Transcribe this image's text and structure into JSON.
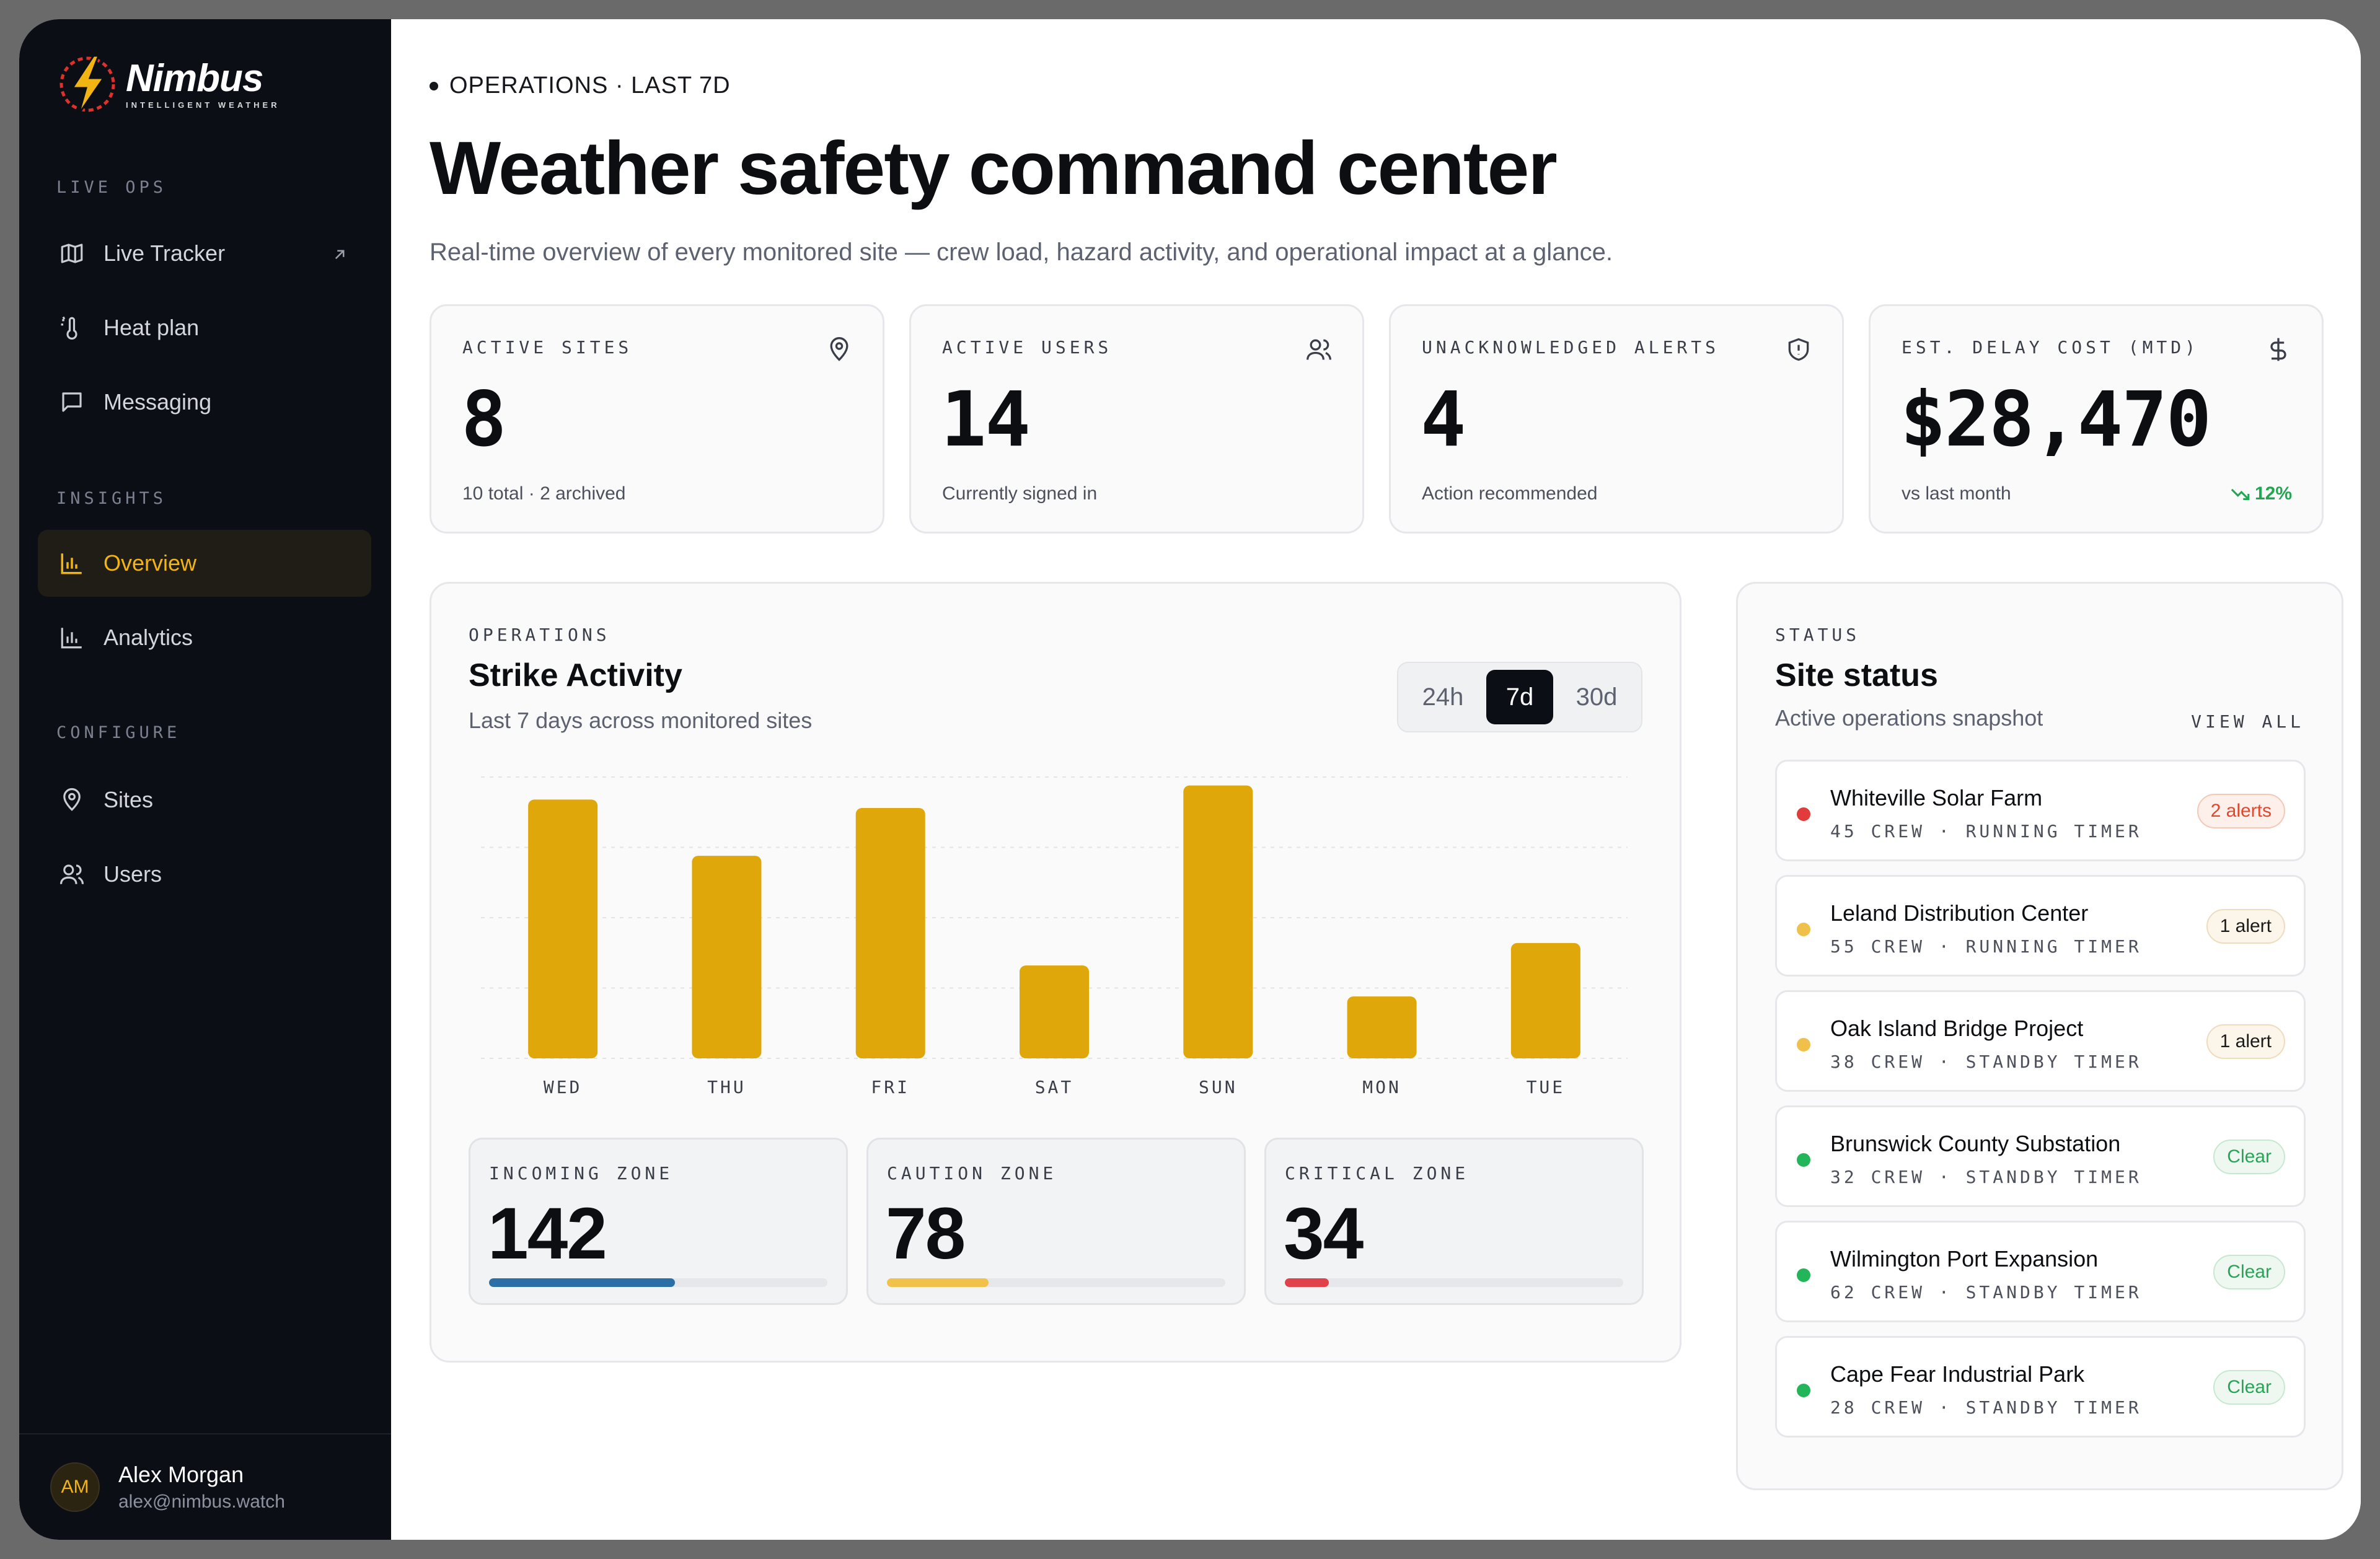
{
  "brand": {
    "name": "Nimbus",
    "tagline": "INTELLIGENT WEATHER"
  },
  "sidebar": {
    "sections": [
      {
        "label": "LIVE OPS"
      },
      {
        "label": "INSIGHTS"
      },
      {
        "label": "CONFIGURE"
      }
    ],
    "items": [
      {
        "label": "Live Tracker",
        "icon": "map-icon"
      },
      {
        "label": "Heat plan",
        "icon": "thermometer-sun-icon"
      },
      {
        "label": "Messaging",
        "icon": "message-square-icon"
      },
      {
        "label": "Overview",
        "icon": "bar-chart-icon",
        "active": true
      },
      {
        "label": "Analytics",
        "icon": "bar-chart-icon"
      },
      {
        "label": "Sites",
        "icon": "map-pin-icon"
      },
      {
        "label": "Users",
        "icon": "users-icon"
      }
    ],
    "user": {
      "initials": "AM",
      "name": "Alex Morgan",
      "email": "alex@nimbus.watch"
    }
  },
  "header": {
    "eyebrow": "OPERATIONS · LAST 7D",
    "title": "Weather safety command center",
    "subtitle": "Real-time overview of every monitored site — crew load, hazard activity, and operational impact at a glance."
  },
  "kpis": [
    {
      "label": "ACTIVE SITES",
      "value": "8",
      "foot": "10 total · 2 archived",
      "icon": "map-pin-icon"
    },
    {
      "label": "ACTIVE USERS",
      "value": "14",
      "foot": "Currently signed in",
      "icon": "users-icon"
    },
    {
      "label": "UNACKNOWLEDGED ALERTS",
      "value": "4",
      "foot": "Action recommended",
      "icon": "shield-alert-icon"
    },
    {
      "label": "EST. DELAY COST (MTD)",
      "value": "$28,470",
      "foot": "vs last month",
      "trend": "12%",
      "icon": "dollar-icon"
    }
  ],
  "strike": {
    "eyebrow": "OPERATIONS",
    "title": "Strike Activity",
    "subtitle": "Last 7 days across monitored sites",
    "ranges": [
      "24h",
      "7d",
      "30d"
    ],
    "selected_range": "7d",
    "zones": [
      {
        "label": "INCOMING ZONE",
        "value": "142",
        "fill": 0.55,
        "color": "#2a6fa6"
      },
      {
        "label": "CAUTION ZONE",
        "value": "78",
        "fill": 0.3,
        "color": "#f2c14a"
      },
      {
        "label": "CRITICAL ZONE",
        "value": "34",
        "fill": 0.13,
        "color": "#e0414a"
      }
    ]
  },
  "chart_data": {
    "type": "bar",
    "categories": [
      "WED",
      "THU",
      "FRI",
      "SAT",
      "SUN",
      "MON",
      "TUE"
    ],
    "values": [
      92,
      72,
      89,
      33,
      97,
      22,
      41
    ],
    "ylim": [
      0,
      100
    ],
    "grid": true,
    "bar_color": "#e0a70b"
  },
  "status": {
    "eyebrow": "STATUS",
    "title": "Site status",
    "subtitle": "Active operations snapshot",
    "view_all": "VIEW ALL",
    "sites": [
      {
        "name": "Whiteville Solar Farm",
        "meta": "45 CREW · RUNNING TIMER",
        "badge": "2 alerts",
        "level": "red"
      },
      {
        "name": "Leland Distribution Center",
        "meta": "55 CREW · RUNNING TIMER",
        "badge": "1 alert",
        "level": "amber"
      },
      {
        "name": "Oak Island Bridge Project",
        "meta": "38 CREW · STANDBY TIMER",
        "badge": "1 alert",
        "level": "amber"
      },
      {
        "name": "Brunswick County Substation",
        "meta": "32 CREW · STANDBY TIMER",
        "badge": "Clear",
        "level": "green"
      },
      {
        "name": "Wilmington Port Expansion",
        "meta": "62 CREW · STANDBY TIMER",
        "badge": "Clear",
        "level": "green"
      },
      {
        "name": "Cape Fear Industrial Park",
        "meta": "28 CREW · STANDBY TIMER",
        "badge": "Clear",
        "level": "green"
      }
    ],
    "level_colors": {
      "red": "#e23b3b",
      "amber": "#f0c14a",
      "green": "#22b55a"
    }
  }
}
